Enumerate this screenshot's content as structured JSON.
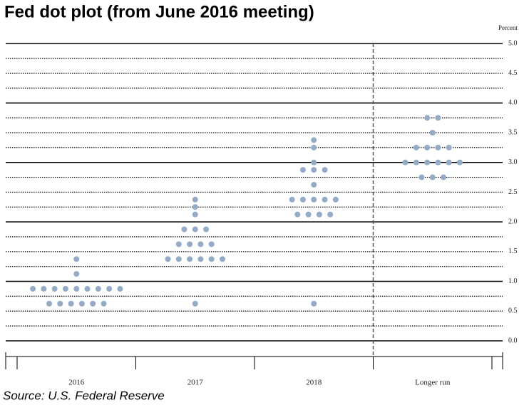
{
  "chart_data": {
    "type": "dot",
    "title": "Fed dot plot (from June 2016 meeting)",
    "y_axis_label": "Percent",
    "source": "Source: U.S. Federal Reserve",
    "categories": [
      "2016",
      "2017",
      "2018",
      "Longer run"
    ],
    "values": [
      [
        0.625,
        0.625,
        0.625,
        0.625,
        0.625,
        0.625,
        0.875,
        0.875,
        0.875,
        0.875,
        0.875,
        0.875,
        0.875,
        0.875,
        0.875,
        1.125,
        1.375
      ],
      [
        0.625,
        1.375,
        1.375,
        1.375,
        1.375,
        1.375,
        1.375,
        1.625,
        1.625,
        1.625,
        1.625,
        1.875,
        1.875,
        1.875,
        2.125,
        2.25,
        2.375
      ],
      [
        0.625,
        2.125,
        2.125,
        2.125,
        2.125,
        2.375,
        2.375,
        2.375,
        2.375,
        2.375,
        2.625,
        2.875,
        2.875,
        2.875,
        3.0,
        3.25,
        3.375
      ],
      [
        2.75,
        2.75,
        2.75,
        3.0,
        3.0,
        3.0,
        3.0,
        3.0,
        3.0,
        3.25,
        3.25,
        3.25,
        3.25,
        3.5,
        3.75,
        3.75
      ]
    ],
    "color": "#94abc7",
    "ylim": [
      0,
      5
    ],
    "yticks": [
      {
        "value": 0,
        "label": "0.0"
      },
      0.5,
      {
        "value": 1,
        "label": "1.0"
      },
      1.5,
      {
        "value": 2,
        "label": "2.0"
      },
      2.5,
      {
        "value": 3,
        "label": "3.0"
      },
      3.5,
      {
        "value": 4,
        "label": "4.0"
      },
      4.5,
      {
        "value": 5,
        "label": "5.0"
      }
    ],
    "grid": true
  }
}
